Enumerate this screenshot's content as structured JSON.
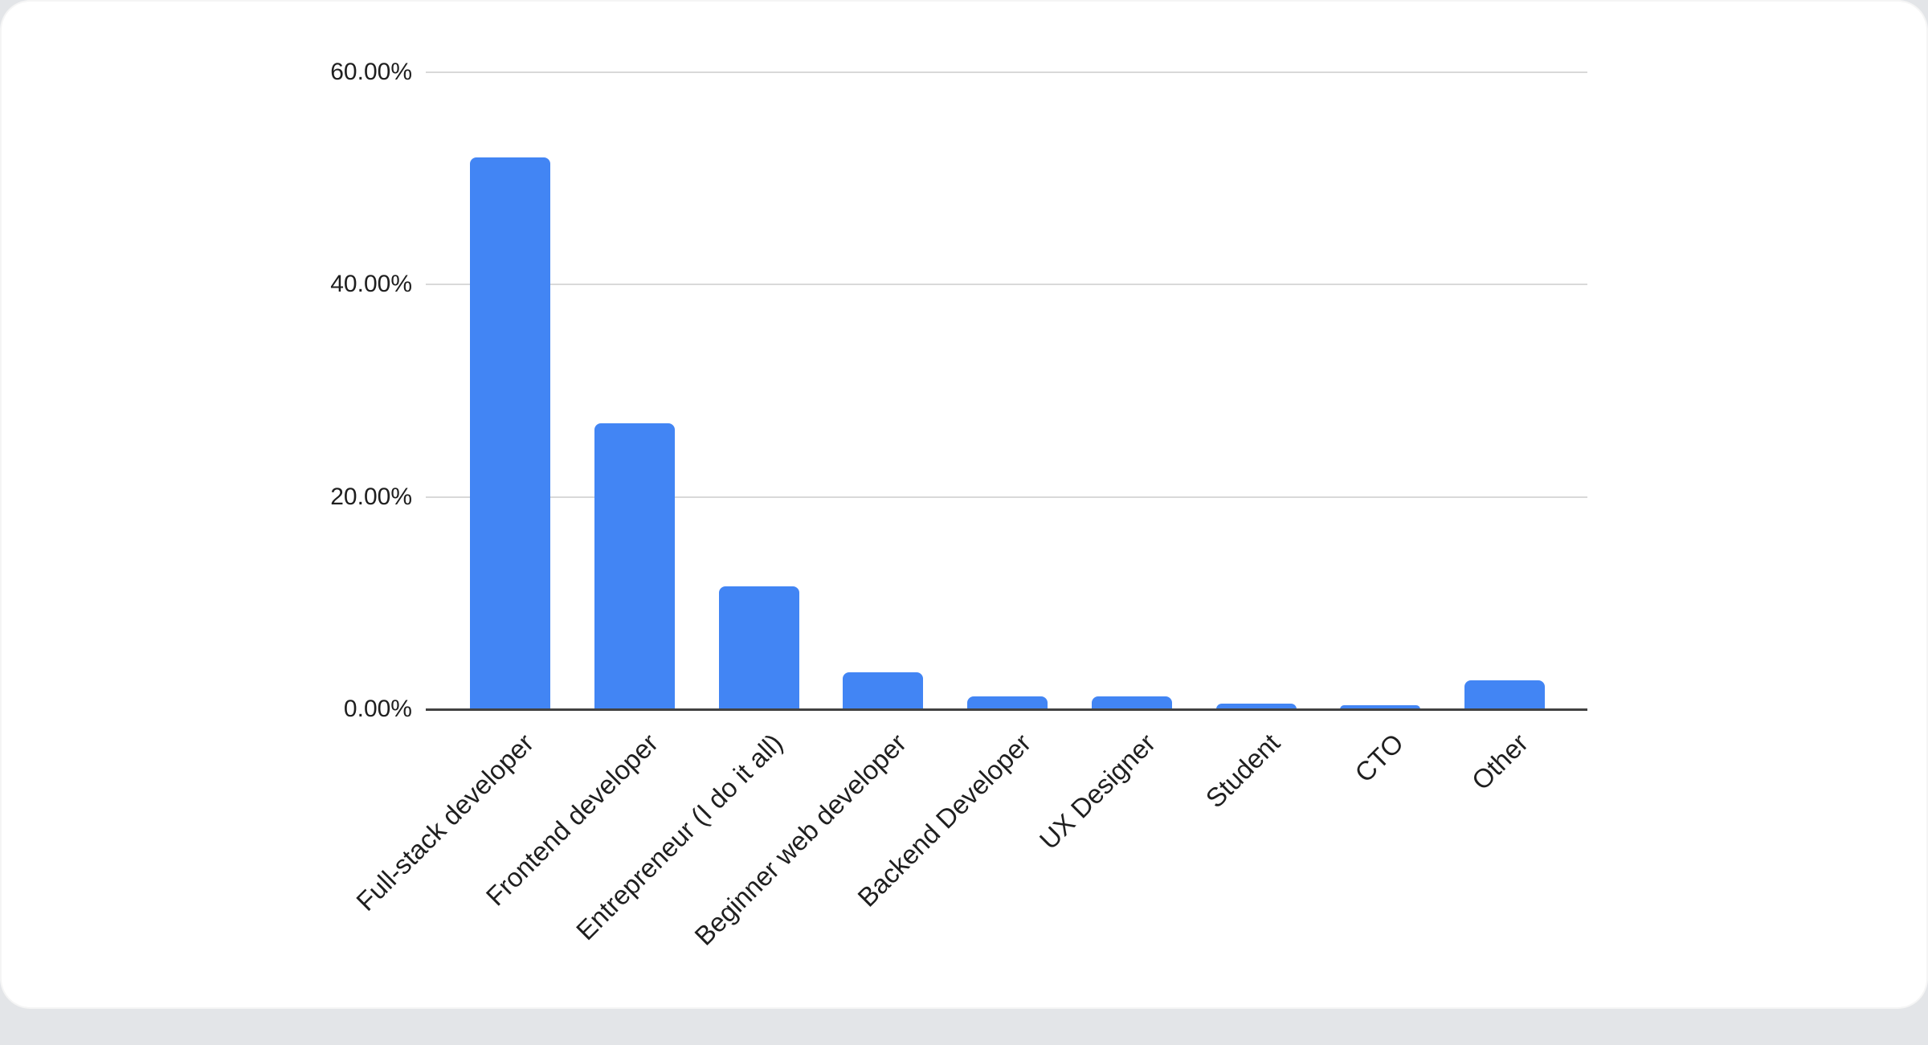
{
  "page": {
    "background_color": "#e3e5e8",
    "card_background_color": "#ffffff"
  },
  "chart_data": {
    "type": "bar",
    "title": "",
    "xlabel": "",
    "ylabel": "",
    "categories": [
      "Full-stack developer",
      "Frontend developer",
      "Entrepreneur (I do it all)",
      "Beginner web developer",
      "Backend Developer",
      "UX Designer",
      "Student",
      "CTO",
      "Other"
    ],
    "values": [
      52.0,
      26.9,
      11.6,
      3.5,
      1.2,
      1.2,
      0.5,
      0.4,
      2.7
    ],
    "value_unit": "percent",
    "ylim": [
      0,
      60
    ],
    "ytick_step": 20,
    "ytick_labels": [
      "0.00%",
      "20.00%",
      "40.00%",
      "60.00%"
    ],
    "grid": true,
    "legend_position": "none",
    "x_label_rotation_deg": -45,
    "colors": {
      "bar": "#4285F4",
      "gridline": "#d9d9d9",
      "axis_line": "#424242",
      "axis_text": "#1f1f1f"
    }
  }
}
